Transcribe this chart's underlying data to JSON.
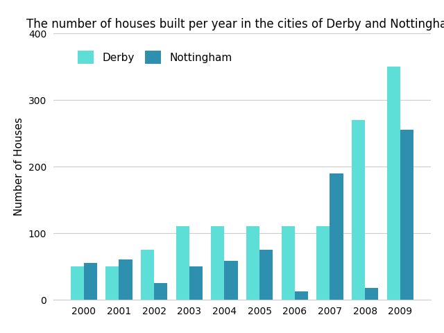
{
  "title": "The number of houses built per year in the cities of Derby and Nottingham",
  "ylabel": "Number of Houses",
  "years": [
    2000,
    2001,
    2002,
    2003,
    2004,
    2005,
    2006,
    2007,
    2008,
    2009
  ],
  "derby": [
    50,
    50,
    75,
    110,
    110,
    110,
    110,
    110,
    270,
    350
  ],
  "nottingham": [
    55,
    60,
    25,
    50,
    58,
    75,
    12,
    190,
    18,
    255
  ],
  "derby_color": "#5DDFD8",
  "nottingham_color": "#2E8FAF",
  "background_color": "#ffffff",
  "ylim": [
    0,
    400
  ],
  "yticks": [
    0,
    100,
    200,
    300,
    400
  ],
  "bar_width": 0.38,
  "legend_labels": [
    "Derby",
    "Nottingham"
  ],
  "title_fontsize": 12,
  "axis_label_fontsize": 11,
  "tick_fontsize": 10
}
